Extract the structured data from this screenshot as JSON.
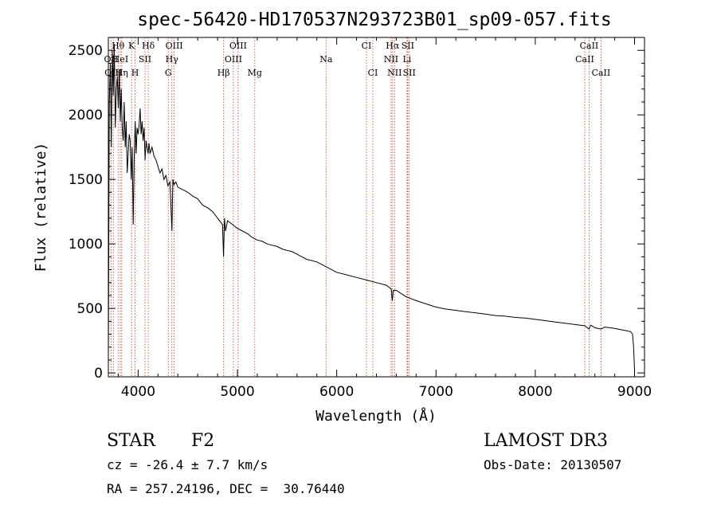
{
  "chart_data": {
    "type": "line",
    "title": "spec-56420-HD170537N293723B01_sp09-057.fits",
    "xlabel": "Wavelength (Å)",
    "ylabel": "Flux (relative)",
    "xlim": [
      3700,
      9100
    ],
    "ylim": [
      -30,
      2600
    ],
    "xticks": [
      4000,
      5000,
      6000,
      7000,
      8000,
      9000
    ],
    "yticks": [
      0,
      500,
      1000,
      1500,
      2000,
      2500
    ],
    "grid": false,
    "series": [
      {
        "name": "flux",
        "x": [
          3700,
          3710,
          3720,
          3730,
          3740,
          3750,
          3760,
          3770,
          3780,
          3790,
          3800,
          3810,
          3820,
          3830,
          3840,
          3850,
          3860,
          3870,
          3880,
          3890,
          3900,
          3910,
          3920,
          3930,
          3940,
          3950,
          3960,
          3970,
          3980,
          3990,
          4000,
          4010,
          4020,
          4030,
          4040,
          4050,
          4060,
          4070,
          4080,
          4090,
          4100,
          4110,
          4120,
          4140,
          4160,
          4180,
          4200,
          4220,
          4240,
          4260,
          4280,
          4300,
          4320,
          4330,
          4340,
          4350,
          4360,
          4380,
          4400,
          4450,
          4500,
          4550,
          4600,
          4650,
          4700,
          4750,
          4800,
          4850,
          4860,
          4870,
          4880,
          4900,
          4950,
          5000,
          5050,
          5100,
          5150,
          5200,
          5250,
          5300,
          5350,
          5400,
          5450,
          5500,
          5550,
          5600,
          5650,
          5700,
          5800,
          5900,
          6000,
          6100,
          6200,
          6300,
          6400,
          6500,
          6550,
          6560,
          6565,
          6570,
          6580,
          6600,
          6700,
          6800,
          6900,
          7000,
          7100,
          7200,
          7300,
          7400,
          7500,
          7600,
          7700,
          7800,
          7900,
          8000,
          8100,
          8200,
          8300,
          8400,
          8500,
          8540,
          8560,
          8600,
          8660,
          8700,
          8800,
          8900,
          8960,
          8980,
          8990,
          9000
        ],
        "y": [
          100,
          2100,
          2400,
          1750,
          2500,
          2150,
          2550,
          1900,
          2200,
          2300,
          2050,
          2350,
          1950,
          2200,
          1900,
          1800,
          2100,
          1750,
          1950,
          1550,
          1700,
          1850,
          1800,
          1500,
          1750,
          1150,
          1650,
          1950,
          1700,
          1900,
          1850,
          1920,
          2050,
          1850,
          1950,
          1800,
          1900,
          1650,
          1800,
          1750,
          1700,
          1780,
          1700,
          1750,
          1680,
          1650,
          1600,
          1550,
          1580,
          1500,
          1530,
          1450,
          1480,
          1300,
          1100,
          1500,
          1460,
          1480,
          1440,
          1420,
          1400,
          1370,
          1350,
          1300,
          1280,
          1250,
          1200,
          1150,
          900,
          1200,
          1100,
          1180,
          1150,
          1120,
          1100,
          1080,
          1050,
          1030,
          1020,
          1000,
          990,
          980,
          960,
          950,
          940,
          920,
          900,
          880,
          860,
          820,
          780,
          760,
          740,
          720,
          700,
          680,
          650,
          560,
          600,
          640,
          640,
          640,
          590,
          560,
          535,
          510,
          495,
          485,
          475,
          465,
          455,
          445,
          440,
          430,
          425,
          415,
          405,
          395,
          385,
          375,
          365,
          340,
          370,
          350,
          340,
          355,
          345,
          330,
          320,
          300,
          200,
          20
        ]
      }
    ],
    "line_markers": [
      {
        "label": "Hθ",
        "x": 3798,
        "row": 1
      },
      {
        "label": "OII",
        "x": 3727,
        "row": 2
      },
      {
        "label": "OIII",
        "x": 3750,
        "row": 3
      },
      {
        "label": "HeI",
        "x": 3820,
        "row": 2
      },
      {
        "label": "Hη",
        "x": 3835,
        "row": 3
      },
      {
        "label": "K",
        "x": 3934,
        "row": 1
      },
      {
        "label": "H",
        "x": 3969,
        "row": 3
      },
      {
        "label": "SII",
        "x": 4069,
        "row": 2
      },
      {
        "label": "Hδ",
        "x": 4102,
        "row": 1
      },
      {
        "label": "OIII",
        "x": 4363,
        "row": 1
      },
      {
        "label": "Hγ",
        "x": 4340,
        "row": 2
      },
      {
        "label": "G",
        "x": 4304,
        "row": 3
      },
      {
        "label": "OIII",
        "x": 5007,
        "row": 1
      },
      {
        "label": "OIII",
        "x": 4959,
        "row": 2
      },
      {
        "label": "Hβ",
        "x": 4861,
        "row": 3
      },
      {
        "label": "Mg",
        "x": 5175,
        "row": 3
      },
      {
        "label": "Na",
        "x": 5893,
        "row": 2
      },
      {
        "label": "CI",
        "x": 6300,
        "row": 1
      },
      {
        "label": "CI",
        "x": 6364,
        "row": 3
      },
      {
        "label": "Hα",
        "x": 6563,
        "row": 1
      },
      {
        "label": "NII",
        "x": 6548,
        "row": 2
      },
      {
        "label": "NII",
        "x": 6583,
        "row": 3
      },
      {
        "label": "SII",
        "x": 6716,
        "row": 1
      },
      {
        "label": "Li",
        "x": 6708,
        "row": 2
      },
      {
        "label": "SII",
        "x": 6731,
        "row": 3
      },
      {
        "label": "CaII",
        "x": 8542,
        "row": 1
      },
      {
        "label": "CaII",
        "x": 8498,
        "row": 2
      },
      {
        "label": "CaII",
        "x": 8662,
        "row": 3
      }
    ]
  },
  "info": {
    "object_class": "STAR",
    "subclass": "F2",
    "survey": "LAMOST DR3",
    "redshift": "cz = -26.4 ± 7.7 km/s",
    "obs_date": "Obs-Date: 20130507",
    "coords": "RA = 257.24196, DEC =  30.76440"
  }
}
